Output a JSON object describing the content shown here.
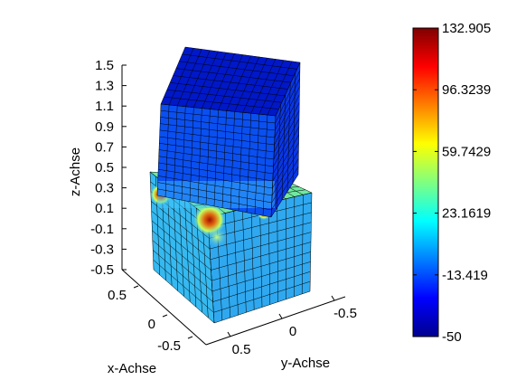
{
  "chart_data": {
    "type": "3d-surface",
    "title": "",
    "z_axis": {
      "label": "z-Achse",
      "ticks": [
        "1.5",
        "1.3",
        "1.1",
        "0.9",
        "0.7",
        "0.5",
        "0.3",
        "0.1",
        "-0.1",
        "-0.3",
        "-0.5"
      ]
    },
    "x_axis": {
      "label": "x-Achse",
      "ticks": [
        "0.5",
        "0",
        "-0.5"
      ]
    },
    "y_axis": {
      "label": "y-Achse",
      "ticks": [
        "0.5",
        "0",
        "-0.5"
      ]
    },
    "colorbar": {
      "colormap": "jet",
      "min": -50,
      "max": 132.905,
      "ticks": [
        "132.905",
        "96.3239",
        "59.7429",
        "23.1619",
        "-13.419",
        "-50"
      ]
    },
    "objects": [
      {
        "name": "lower cube",
        "dominant_value": 8,
        "hotspot_value": 132.905
      },
      {
        "name": "upper rotated cube",
        "dominant_value": -45,
        "edge_value": 25
      }
    ]
  }
}
